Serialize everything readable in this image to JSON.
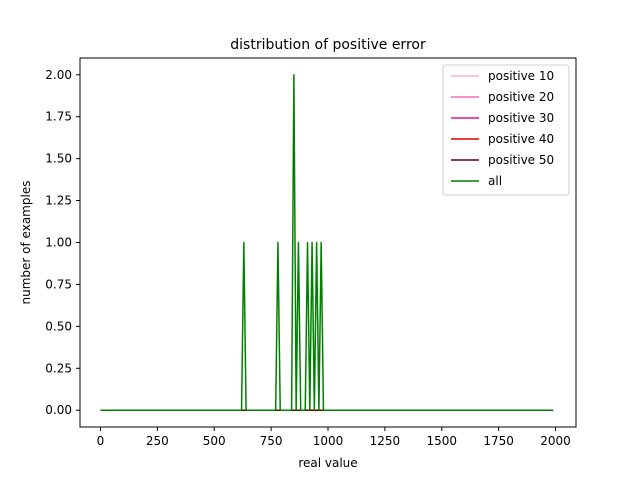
{
  "chart_data": {
    "type": "line",
    "title": "distribution of positive error",
    "xlabel": "real value",
    "ylabel": "number of examples",
    "xlim": [
      -90,
      2090
    ],
    "ylim": [
      -0.1,
      2.1
    ],
    "x_ticks": [
      0,
      250,
      500,
      750,
      1000,
      1250,
      1500,
      1750,
      2000
    ],
    "y_ticks": [
      0.0,
      0.25,
      0.5,
      0.75,
      1.0,
      1.25,
      1.5,
      1.75,
      2.0
    ],
    "x_tick_labels": [
      "0",
      "250",
      "500",
      "750",
      "1000",
      "1250",
      "1500",
      "1750",
      "2000"
    ],
    "y_tick_labels": [
      "0.00",
      "0.25",
      "0.50",
      "0.75",
      "1.00",
      "1.25",
      "1.50",
      "1.75",
      "2.00"
    ],
    "legend_position": "top-right",
    "grid": false,
    "series": [
      {
        "name": "positive 10",
        "color": "#ffb6c1",
        "x": [
          0,
          1990
        ],
        "y": [
          0,
          0
        ]
      },
      {
        "name": "positive 20",
        "color": "#ff69b4",
        "x": [
          0,
          1990
        ],
        "y": [
          0,
          0
        ]
      },
      {
        "name": "positive 30",
        "color": "#dd1199",
        "x": [
          0,
          1990
        ],
        "y": [
          0,
          0
        ]
      },
      {
        "name": "positive 40",
        "color": "#dd0000",
        "x": [
          0,
          1990
        ],
        "y": [
          0,
          0
        ]
      },
      {
        "name": "positive 50",
        "color": "#660000",
        "x": [
          0,
          1990
        ],
        "y": [
          0,
          0
        ]
      },
      {
        "name": "all",
        "color": "#008000",
        "x": [
          0,
          620,
          630,
          640,
          770,
          780,
          790,
          840,
          850,
          860,
          870,
          880,
          900,
          910,
          920,
          930,
          940,
          950,
          960,
          970,
          980,
          1990
        ],
        "y": [
          0,
          0,
          1,
          0,
          0,
          1,
          0,
          0,
          2,
          0,
          1,
          0,
          0,
          1,
          0,
          1,
          0,
          1,
          0,
          1,
          0,
          0
        ]
      }
    ]
  }
}
